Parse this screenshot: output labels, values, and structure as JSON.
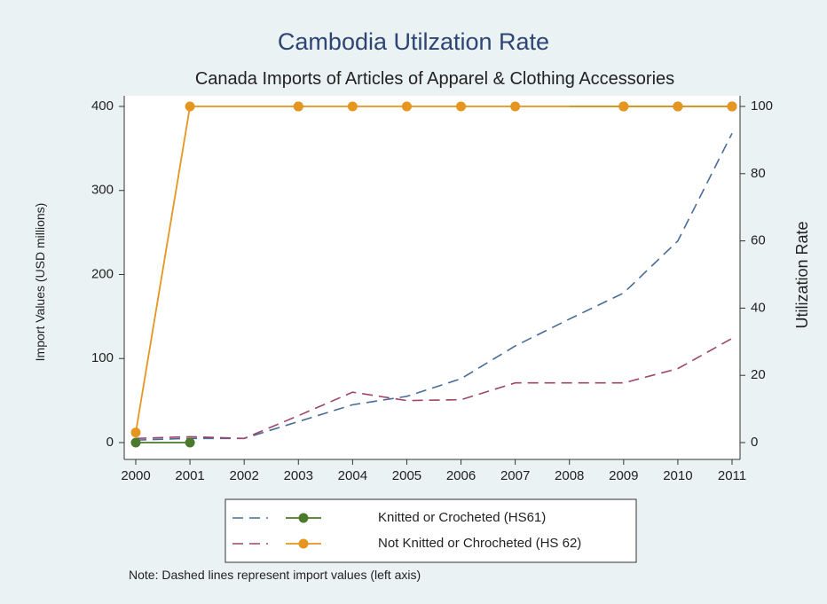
{
  "chart_data": {
    "type": "line",
    "title": "Cambodia Utilzation Rate",
    "subtitle": "Canada Imports of Articles of Apparel & Clothing Accessories",
    "y_left_label": "Import Values (USD millions)",
    "y_right_label": "Utilization Rate",
    "x": [
      2000,
      2001,
      2002,
      2003,
      2004,
      2005,
      2006,
      2007,
      2008,
      2009,
      2010,
      2011
    ],
    "x_ticks": [
      "2000",
      "2001",
      "2002",
      "2003",
      "2004",
      "2005",
      "2006",
      "2007",
      "2008",
      "2009",
      "2010",
      "2011"
    ],
    "y_left_ticks": [
      "0",
      "100",
      "200",
      "300",
      "400"
    ],
    "y_right_ticks": [
      "0",
      "20",
      "40",
      "60",
      "80",
      "100"
    ],
    "y_left_range": [
      0,
      400
    ],
    "y_right_range": [
      0,
      100
    ],
    "grid": false,
    "legend_position": "bottom",
    "import_values": [
      {
        "key": "hs61_import",
        "color": "#476c98",
        "values": [
          3,
          5,
          5,
          25,
          45,
          55,
          76,
          115,
          147,
          178,
          240,
          368
        ]
      },
      {
        "key": "hs62_import",
        "color": "#a0456a",
        "values": [
          5,
          7,
          5,
          32,
          60,
          50,
          51,
          71,
          71,
          71,
          88,
          124
        ]
      }
    ],
    "utilization_rates": [
      {
        "key": "hs61_rate",
        "color": "#4b7a2d",
        "line_values": [
          0,
          0,
          null,
          100,
          null,
          null,
          null,
          null,
          100,
          100,
          100,
          100
        ],
        "marker_values": [
          0,
          0,
          null,
          100,
          null,
          null,
          null,
          null,
          null,
          100,
          100,
          100
        ]
      },
      {
        "key": "hs62_rate",
        "color": "#e6951e",
        "line_values": [
          3,
          100,
          100,
          100,
          100,
          100,
          100,
          100,
          100,
          100,
          100,
          100
        ],
        "marker_values": [
          3,
          100,
          null,
          100,
          100,
          100,
          100,
          100,
          null,
          100,
          100,
          100
        ]
      }
    ],
    "legend": {
      "hs61": "Knitted or Crocheted (HS61)",
      "hs62": "Not Knitted or Chrocheted (HS 62)"
    },
    "note": "Note: Dashed lines represent import values (left axis)"
  }
}
